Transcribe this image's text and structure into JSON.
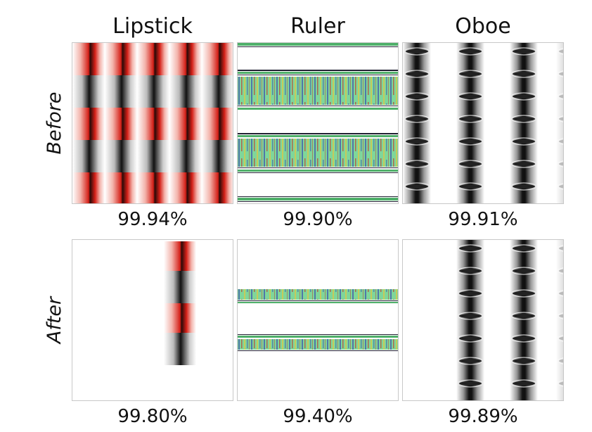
{
  "columns": [
    {
      "title": "Lipstick"
    },
    {
      "title": "Ruler"
    },
    {
      "title": "Oboe"
    }
  ],
  "rows": [
    {
      "label": "Before",
      "scores": [
        "99.94%",
        "99.90%",
        "99.91%"
      ]
    },
    {
      "label": "After",
      "scores": [
        "99.80%",
        "99.40%",
        "99.89%"
      ]
    }
  ],
  "colors": {
    "lipstick_red": "#d42018",
    "dark_band": "#111111",
    "ruler_green": "#6fd38a",
    "ruler_blue": "#3a4fb0",
    "ruler_red": "#c0392b",
    "ruler_yellow": "#d8c84a",
    "oboe_white": "#f0f0f0",
    "panel_border": "#c8c8c8"
  }
}
